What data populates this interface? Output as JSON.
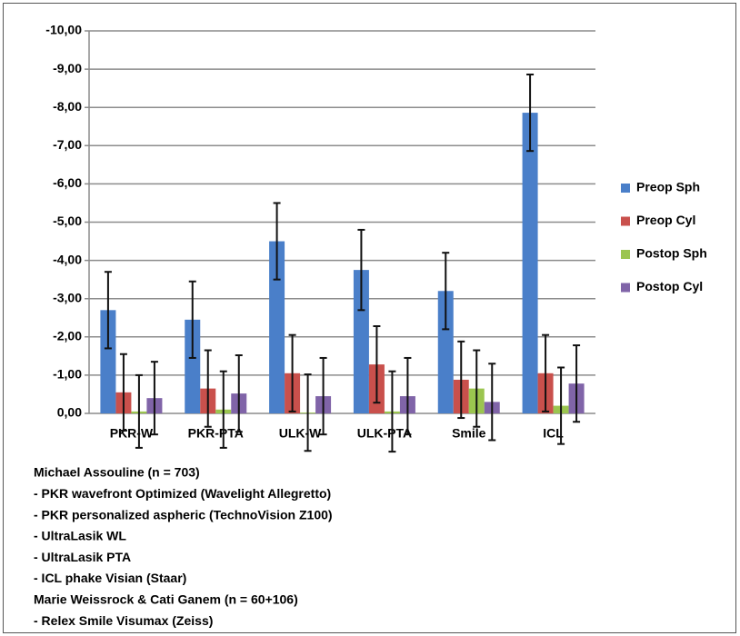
{
  "chart_data": {
    "type": "bar",
    "categories": [
      "PKR-W",
      "PKR-PTA",
      "ULK-W",
      "ULK-PTA",
      "Smile",
      "ICL"
    ],
    "series": [
      {
        "name": "Preop Sph",
        "color": "#4a7fc9",
        "values": [
          -2.7,
          -2.45,
          -4.5,
          -3.75,
          -3.2,
          -7.86
        ],
        "errors": [
          1.0,
          1.0,
          1.0,
          1.05,
          1.0,
          1.0
        ]
      },
      {
        "name": "Preop Cyl",
        "color": "#c9504c",
        "values": [
          -0.55,
          -0.65,
          -1.05,
          -1.28,
          -0.88,
          -1.05
        ],
        "errors": [
          1.0,
          1.0,
          1.0,
          1.0,
          1.0,
          1.0
        ]
      },
      {
        "name": "Postop Sph",
        "color": "#9bc54f",
        "values": [
          -0.05,
          -0.1,
          -0.02,
          -0.05,
          -0.65,
          -0.2
        ],
        "errors": [
          0.95,
          1.0,
          1.0,
          1.05,
          1.0,
          1.0
        ]
      },
      {
        "name": "Postop Cyl",
        "color": "#8064a8",
        "values": [
          -0.4,
          -0.52,
          -0.45,
          -0.45,
          -0.3,
          -0.78
        ],
        "errors": [
          0.95,
          1.0,
          1.0,
          1.0,
          1.0,
          1.0
        ]
      }
    ],
    "ylim": [
      0,
      -10
    ],
    "yticks": [
      {
        "value": 0,
        "label": "0,00"
      },
      {
        "value": -1,
        "label": "-1,00"
      },
      {
        "value": -2,
        "label": "-2,00"
      },
      {
        "value": -3,
        "label": "-3,00"
      },
      {
        "value": -4,
        "label": "-4,00"
      },
      {
        "value": -5,
        "label": "-5,00"
      },
      {
        "value": -6,
        "label": "-6,00"
      },
      {
        "value": -7,
        "label": "-7,00"
      },
      {
        "value": -8,
        "label": "-8,00"
      },
      {
        "value": -9,
        "label": "-9,00"
      },
      {
        "value": -10,
        "label": "-10,00"
      }
    ],
    "grid": true,
    "legend": "right",
    "notes": [
      {
        "text": "Michael Assouline  (n = 703)",
        "color": "#4a7fc9"
      },
      {
        "text": "- PKR wavefront Optimized (Wavelight Allegretto)",
        "color": "#000000"
      },
      {
        "text": "- PKR personalized aspheric (TechnoVision Z100)",
        "color": "#000000"
      },
      {
        "text": "- UltraLasik WL",
        "color": "#000000"
      },
      {
        "text": "- UltraLasik PTA",
        "color": "#000000"
      },
      {
        "text": "- ICL phake Visian (Staar)",
        "color": "#000000"
      },
      {
        "text": "Marie Weissrock & Cati Ganem (n = 60+106)",
        "color": "#4a7fc9"
      },
      {
        "text": "- Relex Smile Visumax (Zeiss)",
        "color": "#000000"
      }
    ]
  }
}
